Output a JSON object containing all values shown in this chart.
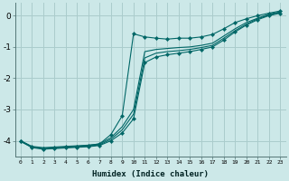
{
  "background_color": "#cce8e8",
  "grid_color": "#aacccc",
  "line_color": "#006666",
  "xlim": [
    -0.5,
    23.5
  ],
  "ylim": [
    -4.5,
    0.4
  ],
  "xlabel": "Humidex (Indice chaleur)",
  "yticks": [
    0,
    -1,
    -2,
    -3,
    -4
  ],
  "xticks": [
    0,
    1,
    2,
    3,
    4,
    5,
    6,
    7,
    8,
    9,
    10,
    11,
    12,
    13,
    14,
    15,
    16,
    17,
    18,
    19,
    20,
    21,
    22,
    23
  ],
  "curve_marker_x": [
    0,
    1,
    2,
    3,
    4,
    5,
    6,
    7,
    8,
    9,
    10,
    11,
    12,
    13,
    14,
    15,
    16,
    17,
    18,
    19,
    20,
    21,
    22,
    23
  ],
  "curve_marker_y": [
    -4.0,
    -4.2,
    -4.25,
    -4.22,
    -4.2,
    -4.18,
    -4.15,
    -4.1,
    -3.8,
    -3.2,
    -0.58,
    -0.68,
    -0.72,
    -0.75,
    -0.72,
    -0.72,
    -0.68,
    -0.6,
    -0.42,
    -0.22,
    -0.1,
    0.0,
    0.08,
    0.15
  ],
  "curve_smooth1_x": [
    0,
    1,
    2,
    3,
    4,
    5,
    6,
    7,
    8,
    9,
    10,
    11,
    12,
    13,
    14,
    15,
    16,
    17,
    18,
    19,
    20,
    21,
    22,
    23
  ],
  "curve_smooth1_y": [
    -4.0,
    -4.18,
    -4.22,
    -4.2,
    -4.18,
    -4.16,
    -4.14,
    -4.1,
    -3.9,
    -3.55,
    -3.0,
    -1.15,
    -1.08,
    -1.05,
    -1.02,
    -1.0,
    -0.95,
    -0.88,
    -0.65,
    -0.42,
    -0.22,
    -0.08,
    0.05,
    0.12
  ],
  "curve_smooth2_x": [
    0,
    1,
    2,
    3,
    4,
    5,
    6,
    7,
    8,
    9,
    10,
    11,
    12,
    13,
    14,
    15,
    16,
    17,
    18,
    19,
    20,
    21,
    22,
    23
  ],
  "curve_smooth2_y": [
    -4.02,
    -4.2,
    -4.25,
    -4.23,
    -4.21,
    -4.19,
    -4.17,
    -4.13,
    -3.95,
    -3.65,
    -3.15,
    -1.35,
    -1.2,
    -1.15,
    -1.12,
    -1.08,
    -1.02,
    -0.95,
    -0.72,
    -0.48,
    -0.27,
    -0.1,
    0.02,
    0.1
  ],
  "curve_marker2_x": [
    0,
    1,
    2,
    3,
    4,
    5,
    6,
    7,
    8,
    9,
    10,
    11,
    12,
    13,
    14,
    15,
    16,
    17,
    18,
    19,
    20,
    21,
    22,
    23
  ],
  "curve_marker2_y": [
    -4.02,
    -4.22,
    -4.27,
    -4.25,
    -4.23,
    -4.21,
    -4.19,
    -4.15,
    -4.0,
    -3.75,
    -3.3,
    -1.5,
    -1.32,
    -1.25,
    -1.2,
    -1.15,
    -1.08,
    -1.0,
    -0.78,
    -0.52,
    -0.3,
    -0.13,
    0.0,
    0.08
  ]
}
